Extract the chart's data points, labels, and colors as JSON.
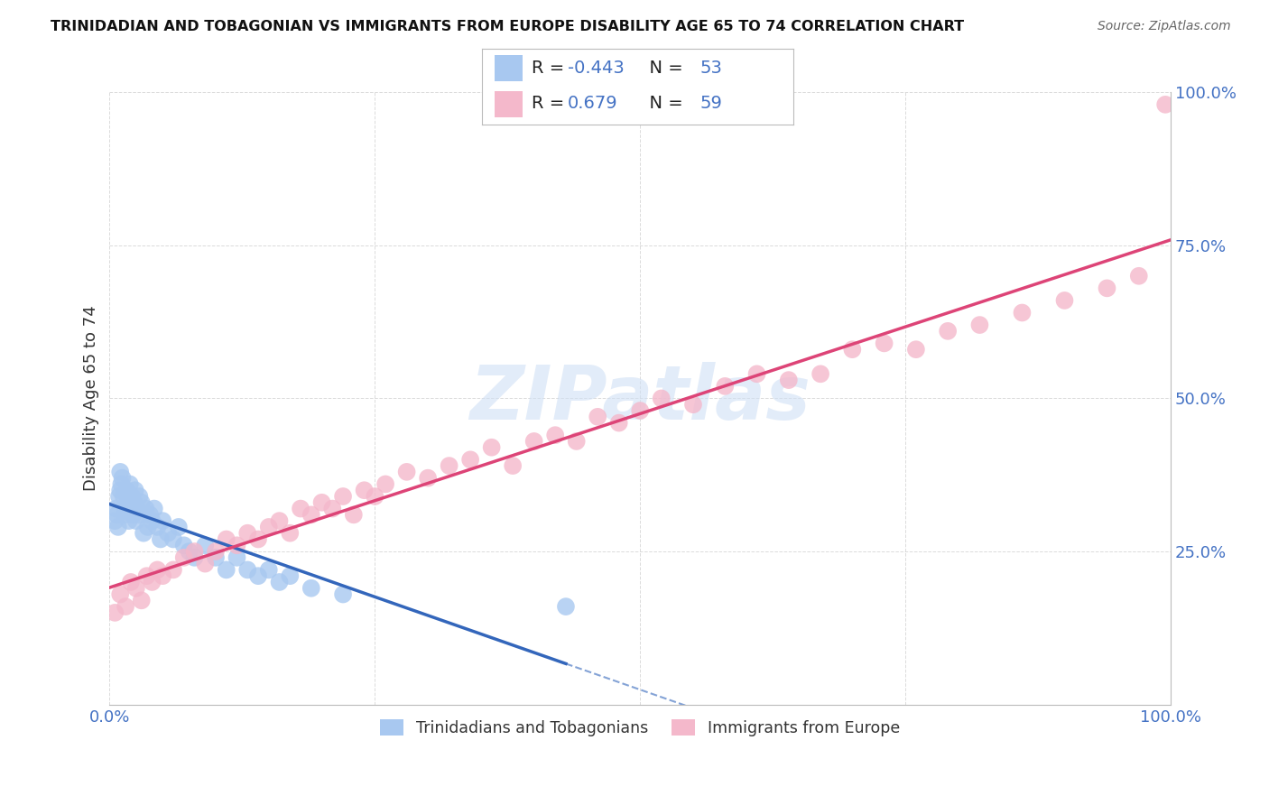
{
  "title": "TRINIDADIAN AND TOBAGONIAN VS IMMIGRANTS FROM EUROPE DISABILITY AGE 65 TO 74 CORRELATION CHART",
  "source": "Source: ZipAtlas.com",
  "ylabel": "Disability Age 65 to 74",
  "watermark": "ZIPatlas",
  "series1_label": "Trinidadians and Tobagonians",
  "series2_label": "Immigrants from Europe",
  "series1_R": "-0.443",
  "series1_N": "53",
  "series2_R": "0.679",
  "series2_N": "59",
  "series1_color": "#a8c8f0",
  "series2_color": "#f4b8cb",
  "series1_line_color": "#3366bb",
  "series2_line_color": "#dd4477",
  "background_color": "#ffffff",
  "grid_color": "#cccccc",
  "title_color": "#111111",
  "tick_color": "#4472c4",
  "legend_R_color": "#4472c4",
  "xlim": [
    0.0,
    1.0
  ],
  "ylim": [
    0.0,
    1.0
  ],
  "series1_x": [
    0.005,
    0.006,
    0.007,
    0.008,
    0.009,
    0.01,
    0.01,
    0.011,
    0.012,
    0.013,
    0.014,
    0.015,
    0.016,
    0.017,
    0.018,
    0.019,
    0.02,
    0.021,
    0.022,
    0.023,
    0.024,
    0.025,
    0.026,
    0.027,
    0.028,
    0.03,
    0.032,
    0.034,
    0.036,
    0.038,
    0.04,
    0.042,
    0.045,
    0.048,
    0.05,
    0.055,
    0.06,
    0.065,
    0.07,
    0.075,
    0.08,
    0.09,
    0.1,
    0.11,
    0.12,
    0.13,
    0.14,
    0.15,
    0.16,
    0.17,
    0.19,
    0.22,
    0.43
  ],
  "series1_y": [
    0.3,
    0.32,
    0.31,
    0.29,
    0.34,
    0.35,
    0.38,
    0.36,
    0.37,
    0.34,
    0.31,
    0.32,
    0.35,
    0.33,
    0.3,
    0.36,
    0.32,
    0.34,
    0.31,
    0.33,
    0.35,
    0.3,
    0.32,
    0.31,
    0.34,
    0.33,
    0.28,
    0.32,
    0.29,
    0.31,
    0.3,
    0.32,
    0.29,
    0.27,
    0.3,
    0.28,
    0.27,
    0.29,
    0.26,
    0.25,
    0.24,
    0.26,
    0.24,
    0.22,
    0.24,
    0.22,
    0.21,
    0.22,
    0.2,
    0.21,
    0.19,
    0.18,
    0.16
  ],
  "series2_x": [
    0.005,
    0.01,
    0.015,
    0.02,
    0.025,
    0.03,
    0.035,
    0.04,
    0.045,
    0.05,
    0.06,
    0.07,
    0.08,
    0.09,
    0.1,
    0.11,
    0.12,
    0.13,
    0.14,
    0.15,
    0.16,
    0.17,
    0.18,
    0.19,
    0.2,
    0.21,
    0.22,
    0.23,
    0.24,
    0.25,
    0.26,
    0.28,
    0.3,
    0.32,
    0.34,
    0.36,
    0.38,
    0.4,
    0.42,
    0.44,
    0.46,
    0.48,
    0.5,
    0.52,
    0.55,
    0.58,
    0.61,
    0.64,
    0.67,
    0.7,
    0.73,
    0.76,
    0.79,
    0.82,
    0.86,
    0.9,
    0.94,
    0.97,
    0.995
  ],
  "series2_y": [
    0.15,
    0.18,
    0.16,
    0.2,
    0.19,
    0.17,
    0.21,
    0.2,
    0.22,
    0.21,
    0.22,
    0.24,
    0.25,
    0.23,
    0.25,
    0.27,
    0.26,
    0.28,
    0.27,
    0.29,
    0.3,
    0.28,
    0.32,
    0.31,
    0.33,
    0.32,
    0.34,
    0.31,
    0.35,
    0.34,
    0.36,
    0.38,
    0.37,
    0.39,
    0.4,
    0.42,
    0.39,
    0.43,
    0.44,
    0.43,
    0.47,
    0.46,
    0.48,
    0.5,
    0.49,
    0.52,
    0.54,
    0.53,
    0.54,
    0.58,
    0.59,
    0.58,
    0.61,
    0.62,
    0.64,
    0.66,
    0.68,
    0.7,
    0.98
  ]
}
